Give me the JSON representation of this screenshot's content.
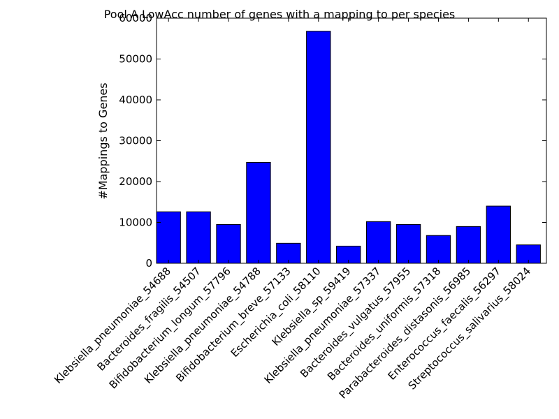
{
  "chart_data": {
    "type": "bar",
    "title": "Pool A LowAcc number of genes with a mapping to per species",
    "xlabel": "",
    "ylabel": "#Mappings to Genes",
    "ylim": [
      0,
      60000
    ],
    "yticks": [
      0,
      10000,
      20000,
      30000,
      40000,
      50000,
      60000
    ],
    "yticks_labels": [
      "0",
      "10000",
      "20000",
      "30000",
      "40000",
      "50000",
      "60000"
    ],
    "categories": [
      "Klebsiella_pneumoniae_54688",
      "Bacteroides_fragilis_54507",
      "Bifidobacterium_longum_57796",
      "Klebsiella_pneumoniae_54788",
      "Bifidobacterium_breve_57133",
      "Escherichia_coli_58110",
      "Klebsiella_sp_59419",
      "Klebsiella_pneumoniae_57337",
      "Bacteroides_vulgatus_57955",
      "Bacteroides_uniformis_57318",
      "Parabacteroides_distasonis_56985",
      "Enterococcus_faecalis_56297",
      "Streptococcus_salivarius_58024"
    ],
    "values": [
      12600,
      12600,
      9500,
      24700,
      4900,
      56800,
      4200,
      10200,
      9500,
      6800,
      9000,
      14000,
      4500
    ],
    "bar_color": "#0000ff",
    "grid": false,
    "legend": "none"
  }
}
